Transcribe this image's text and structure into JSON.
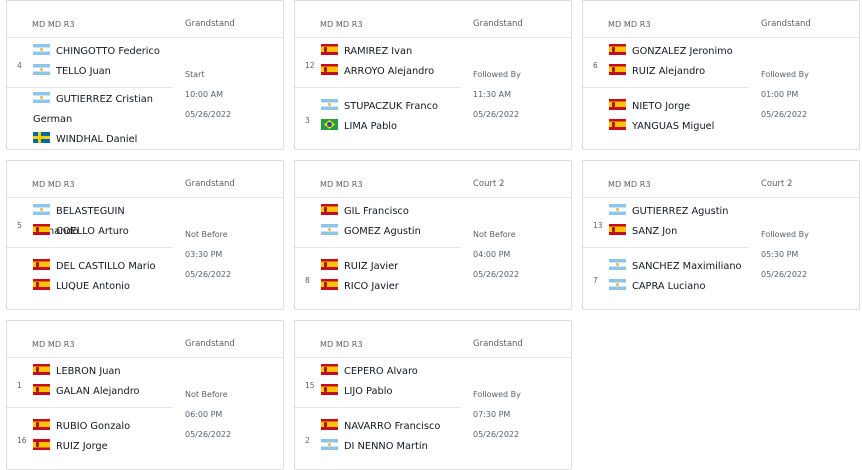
{
  "matches": [
    {
      "round": "MD MD R3",
      "court": "Grandstand",
      "team1": {
        "seed": "4",
        "players": [
          {
            "name": "CHINGOTTO Federico",
            "flag": "ar"
          },
          {
            "name": "TELLO Juan",
            "flag": "ar"
          }
        ]
      },
      "team2": {
        "seed": "",
        "players": [
          {
            "name": "GUTIERREZ Cristian German",
            "flag": "ar"
          },
          {
            "name": "WINDHAL Daniel",
            "flag": "se"
          }
        ]
      },
      "status": "Start",
      "time": "10:00 AM",
      "date": "05/26/2022"
    },
    {
      "round": "MD MD R3",
      "court": "Grandstand",
      "team1": {
        "seed": "12",
        "players": [
          {
            "name": "RAMIREZ Ivan",
            "flag": "es"
          },
          {
            "name": "ARROYO Alejandro",
            "flag": "es"
          }
        ]
      },
      "team2": {
        "seed": "3",
        "players": [
          {
            "name": "STUPACZUK Franco",
            "flag": "ar"
          },
          {
            "name": "LIMA Pablo",
            "flag": "br"
          }
        ]
      },
      "status": "Followed By",
      "time": "11:30 AM",
      "date": "05/26/2022"
    },
    {
      "round": "MD MD R3",
      "court": "Grandstand",
      "team1": {
        "seed": "6",
        "players": [
          {
            "name": "GONZALEZ Jeronimo",
            "flag": "es"
          },
          {
            "name": "RUIZ Alejandro",
            "flag": "es"
          }
        ]
      },
      "team2": {
        "seed": "",
        "players": [
          {
            "name": "NIETO Jorge",
            "flag": "es"
          },
          {
            "name": "YANGUAS Miguel",
            "flag": "es"
          }
        ]
      },
      "status": "Followed By",
      "time": "01:00 PM",
      "date": "05/26/2022"
    },
    {
      "round": "MD MD R3",
      "court": "Grandstand",
      "team1": {
        "seed": "5",
        "players": [
          {
            "name": "BELASTEGUIN Fernando",
            "flag": "ar"
          },
          {
            "name": "COELLO Arturo",
            "flag": "es"
          }
        ]
      },
      "team2": {
        "seed": "",
        "players": [
          {
            "name": "DEL CASTILLO Mario",
            "flag": "es"
          },
          {
            "name": "LUQUE Antonio",
            "flag": "es"
          }
        ]
      },
      "status": "Not Before",
      "time": "03:30 PM",
      "date": "05/26/2022"
    },
    {
      "round": "MD MD R3",
      "court": "Court 2",
      "team1": {
        "seed": "",
        "players": [
          {
            "name": "GIL Francisco",
            "flag": "es"
          },
          {
            "name": "GOMEZ Agustin",
            "flag": "ar"
          }
        ]
      },
      "team2": {
        "seed": "8",
        "players": [
          {
            "name": "RUIZ Javier",
            "flag": "es"
          },
          {
            "name": "RICO Javier",
            "flag": "es"
          }
        ]
      },
      "status": "Not Before",
      "time": "04:00 PM",
      "date": "05/26/2022"
    },
    {
      "round": "MD MD R3",
      "court": "Court 2",
      "team1": {
        "seed": "13",
        "players": [
          {
            "name": "GUTIERREZ Agustin",
            "flag": "ar"
          },
          {
            "name": "SANZ Jon",
            "flag": "es"
          }
        ]
      },
      "team2": {
        "seed": "7",
        "players": [
          {
            "name": "SANCHEZ Maximiliano",
            "flag": "ar"
          },
          {
            "name": "CAPRA Luciano",
            "flag": "ar"
          }
        ]
      },
      "status": "Followed By",
      "time": "05:30 PM",
      "date": "05/26/2022"
    },
    {
      "round": "MD MD R3",
      "court": "Grandstand",
      "team1": {
        "seed": "1",
        "players": [
          {
            "name": "LEBRON Juan",
            "flag": "es"
          },
          {
            "name": "GALAN Alejandro",
            "flag": "es"
          }
        ]
      },
      "team2": {
        "seed": "16",
        "players": [
          {
            "name": "RUBIO Gonzalo",
            "flag": "es"
          },
          {
            "name": "RUIZ Jorge",
            "flag": "es"
          }
        ]
      },
      "status": "Not Before",
      "time": "06:00 PM",
      "date": "05/26/2022"
    },
    {
      "round": "MD MD R3",
      "court": "Grandstand",
      "team1": {
        "seed": "15",
        "players": [
          {
            "name": "CEPERO Alvaro",
            "flag": "es"
          },
          {
            "name": "LIJO Pablo",
            "flag": "es"
          }
        ]
      },
      "team2": {
        "seed": "2",
        "players": [
          {
            "name": "NAVARRO Francisco",
            "flag": "es"
          },
          {
            "name": "DI NENNO Martin",
            "flag": "ar"
          }
        ]
      },
      "status": "Followed By",
      "time": "07:30 PM",
      "date": "05/26/2022"
    }
  ]
}
